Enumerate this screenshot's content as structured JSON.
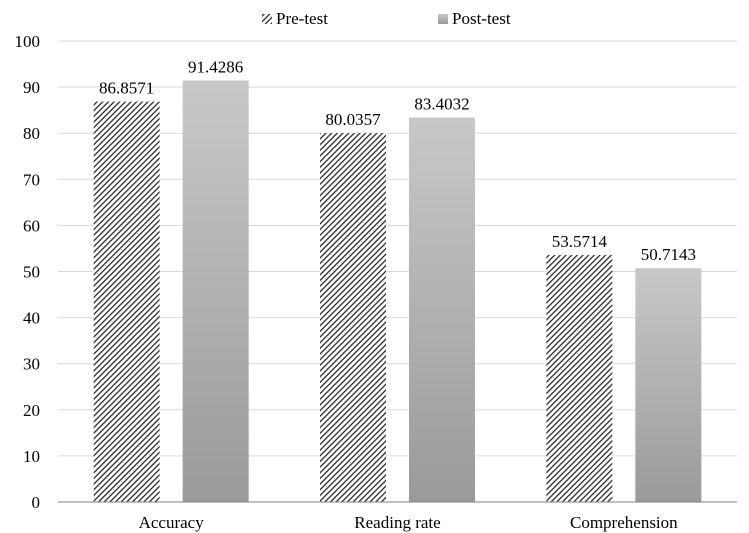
{
  "chart_data": {
    "type": "bar",
    "categories": [
      "Accuracy",
      "Reading rate",
      "Comprehension"
    ],
    "series": [
      {
        "name": "Pre-test",
        "values": [
          86.8571,
          80.0357,
          53.5714
        ],
        "labels": [
          "86.8571",
          "80.0357",
          "53.5714"
        ],
        "pattern": "diagonal-hatch",
        "color": "#1a1a1a"
      },
      {
        "name": "Post-test",
        "values": [
          91.4286,
          83.4032,
          50.7143
        ],
        "labels": [
          "91.4286",
          "83.4032",
          "50.7143"
        ],
        "pattern": "gradient",
        "color_top": "#c8c8c8",
        "color_bottom": "#9a9a9a"
      }
    ],
    "yticks": [
      "0",
      "10",
      "20",
      "30",
      "40",
      "50",
      "60",
      "70",
      "80",
      "90",
      "100"
    ],
    "ylim": [
      0,
      100
    ],
    "grid": true,
    "legend_position": "top-center"
  }
}
